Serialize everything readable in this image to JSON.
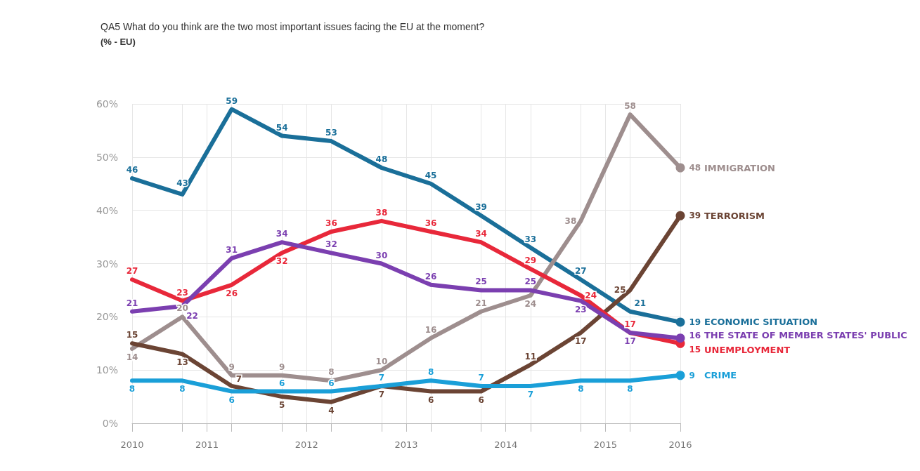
{
  "chart_data": {
    "type": "line",
    "title": "QA5 What do you think are the two most important issues facing the EU at the moment?",
    "subtitle": "(% - EU)",
    "x": [
      2010,
      2010.55,
      2011.09,
      2011.64,
      2012.18,
      2012.73,
      2013.27,
      2013.82,
      2014.36,
      2014.91,
      2015.45,
      2016
    ],
    "xlim": [
      2010,
      2016
    ],
    "xticks": [
      2010,
      {
        "value": 2010.55,
        "label": null
      },
      {
        "value": 2010.82,
        "label": "2011"
      },
      {
        "value": 2011.09,
        "label": null
      },
      {
        "value": 2011.64,
        "label": null
      },
      {
        "value": 2011.91,
        "label": "2012"
      },
      {
        "value": 2012.18,
        "label": null
      },
      {
        "value": 2012.73,
        "label": null
      },
      {
        "value": 2013,
        "label": "2013"
      },
      {
        "value": 2013.27,
        "label": null
      },
      {
        "value": 2013.82,
        "label": null
      },
      {
        "value": 2014.09,
        "label": "2014"
      },
      {
        "value": 2014.36,
        "label": null
      },
      {
        "value": 2014.91,
        "label": null
      },
      {
        "value": 2015.18,
        "label": "2015"
      },
      {
        "value": 2015.45,
        "label": null
      },
      2016
    ],
    "ylim": [
      0,
      60
    ],
    "yticks": [
      {
        "value": 0,
        "label": "0%"
      },
      {
        "value": 10,
        "label": "10%"
      },
      {
        "value": 20,
        "label": "20%"
      },
      {
        "value": 30,
        "label": "30%"
      },
      {
        "value": 40,
        "label": "40%"
      },
      {
        "value": 50,
        "label": "50%"
      },
      {
        "value": 60,
        "label": "60%"
      }
    ],
    "grid": true,
    "data_labels": true,
    "marker": "none",
    "line_style": "solid",
    "legend": false,
    "series": [
      {
        "name": "ECONOMIC SITUATION",
        "color": "#1a6f99",
        "values": [
          46,
          43,
          59,
          54,
          53,
          48,
          45,
          39,
          33,
          27,
          21,
          19
        ]
      },
      {
        "name": "IMMIGRATION",
        "color": "#9e8e8e",
        "values": [
          14,
          20,
          9,
          9,
          8,
          10,
          16,
          21,
          24,
          38,
          58,
          48
        ]
      },
      {
        "name": "TERRORISM",
        "color": "#6b4434",
        "values": [
          15,
          13,
          7,
          5,
          4,
          7,
          6,
          6,
          11,
          17,
          25,
          39
        ]
      },
      {
        "name": "UNEMPLOYMENT",
        "color": "#e8283a",
        "values": [
          27,
          23,
          26,
          32,
          36,
          38,
          36,
          34,
          29,
          24,
          17,
          15
        ]
      },
      {
        "name": "THE STATE OF MEMBER STATES' PUBLIC",
        "color": "#7b3fb0",
        "values": [
          21,
          22,
          31,
          34,
          32,
          30,
          26,
          25,
          25,
          23,
          17,
          16
        ]
      },
      {
        "name": "CRIME",
        "color": "#1a9fd8",
        "values": [
          8,
          8,
          6,
          6,
          6,
          7,
          8,
          7,
          7,
          8,
          8,
          9
        ]
      }
    ]
  }
}
